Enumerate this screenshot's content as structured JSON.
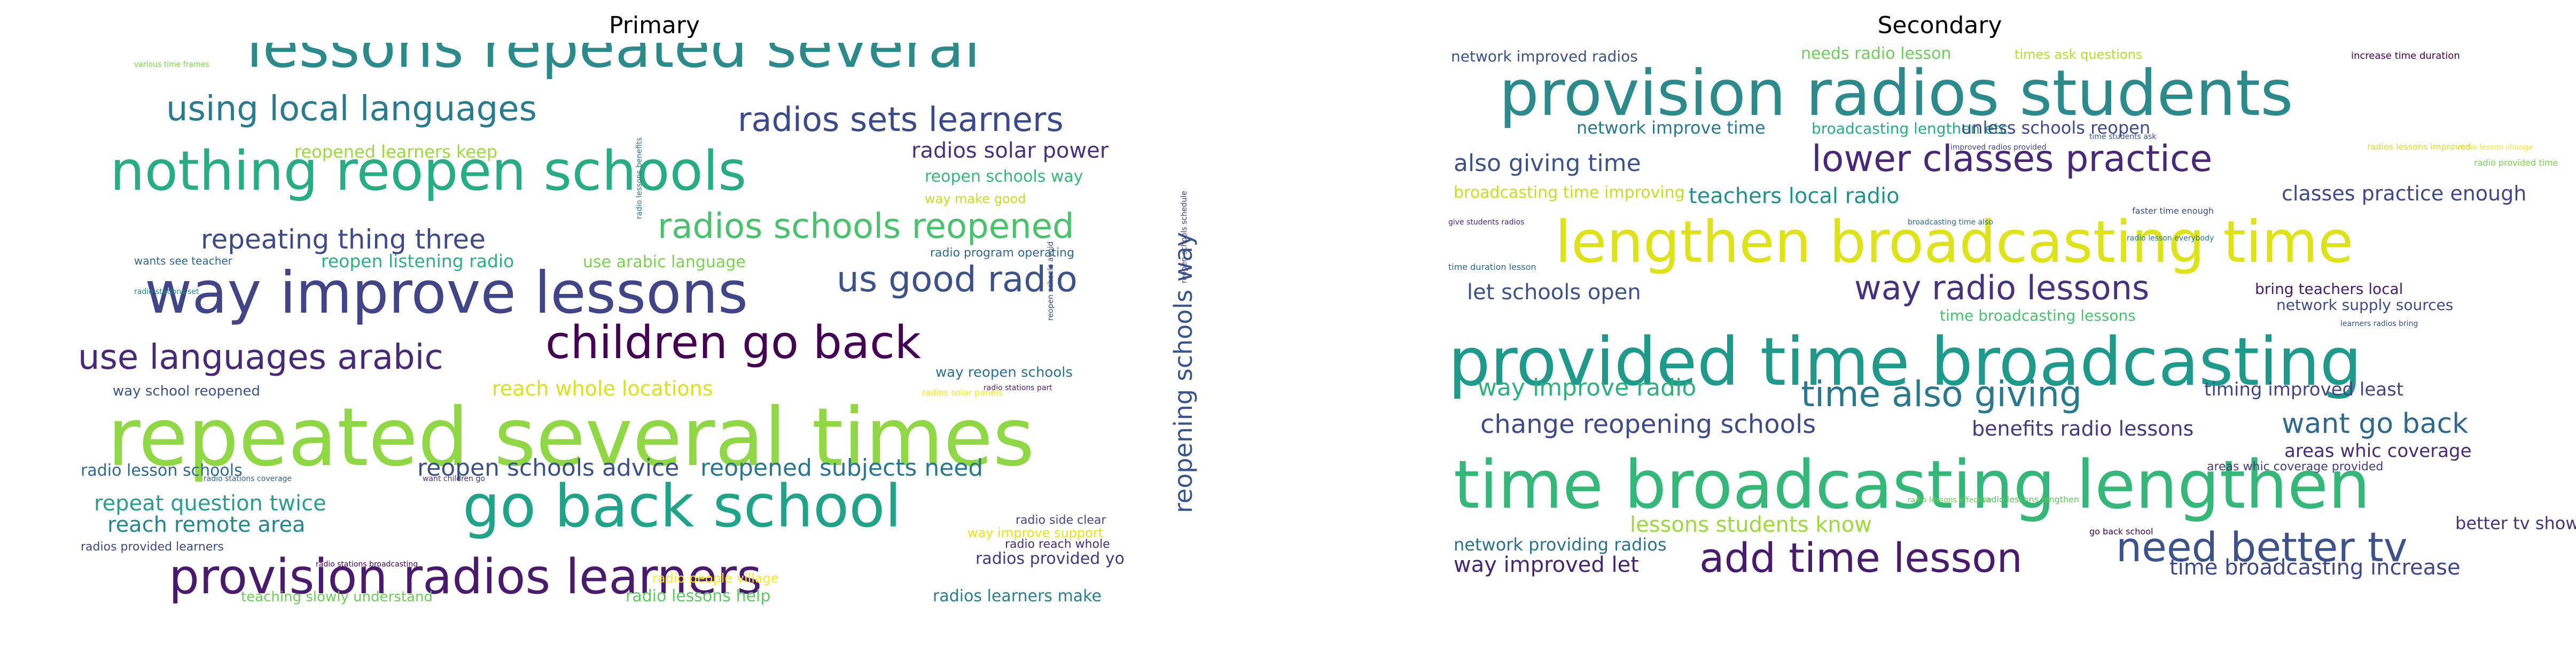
{
  "panels": [
    {
      "title": "Primary",
      "words": [
        {
          "text": "lessons repeated several",
          "color": "#2c8a8a"
        },
        {
          "text": "using local languages",
          "color": "#2a7b8e"
        },
        {
          "text": "radios sets learners",
          "color": "#3b4a8a"
        },
        {
          "text": "nothing reopen schools",
          "color": "#27ad81"
        },
        {
          "text": "radios solar power",
          "color": "#46337f"
        },
        {
          "text": "reopened learners keep",
          "color": "#9bd93c"
        },
        {
          "text": "reopen schools way",
          "color": "#35b779"
        },
        {
          "text": "way make good",
          "color": "#c2df23"
        },
        {
          "text": "radios schools reopened",
          "color": "#4ac16d"
        },
        {
          "text": "repeating thing three",
          "color": "#3e4a89"
        },
        {
          "text": "reopen listening radio",
          "color": "#2db27d"
        },
        {
          "text": "use arabic language",
          "color": "#7ad151"
        },
        {
          "text": "way improve lessons",
          "color": "#414487"
        },
        {
          "text": "us good radio",
          "color": "#3b528b"
        },
        {
          "text": "radio program operating",
          "color": "#31688e"
        },
        {
          "text": "use languages arabic",
          "color": "#482878"
        },
        {
          "text": "children go back",
          "color": "#440154"
        },
        {
          "text": "way school reopened",
          "color": "#3b528b"
        },
        {
          "text": "reach whole locations",
          "color": "#d8e219"
        },
        {
          "text": "way reopen schools",
          "color": "#2c728e"
        },
        {
          "text": "repeated several times",
          "color": "#8fd744"
        },
        {
          "text": "radio lesson schools",
          "color": "#31688e"
        },
        {
          "text": "reopen schools advice",
          "color": "#3b528b"
        },
        {
          "text": "reopened subjects need",
          "color": "#2a788e"
        },
        {
          "text": "repeat question twice",
          "color": "#2a9d8f"
        },
        {
          "text": "reach remote area",
          "color": "#24868e"
        },
        {
          "text": "go back school",
          "color": "#20a386"
        },
        {
          "text": "provision radios learners",
          "color": "#481b6d"
        },
        {
          "text": "radios provided yo",
          "color": "#443983"
        },
        {
          "text": "teaching slowly understand",
          "color": "#6ccd5a"
        },
        {
          "text": "radio lessons help",
          "color": "#5ec962"
        },
        {
          "text": "radios learners make",
          "color": "#287d8e"
        },
        {
          "text": "radio lessons preferred",
          "color": "#3e4c8a"
        },
        {
          "text": "reopening schools way",
          "color": "#3a548c"
        },
        {
          "text": "radio reach whole",
          "color": "#472c7a"
        },
        {
          "text": "radio people village",
          "color": "#fde725"
        },
        {
          "text": "way improve support",
          "color": "#e5e419"
        },
        {
          "text": "radio side clear",
          "color": "#404688"
        },
        {
          "text": "radios provided learners",
          "color": "#3f4889"
        },
        {
          "text": "various time frames",
          "color": "#7fd34e"
        },
        {
          "text": "wants see teacher",
          "color": "#31688e"
        },
        {
          "text": "radio stations set",
          "color": "#21918c"
        },
        {
          "text": "radio stations part",
          "color": "#482475"
        },
        {
          "text": "radios solar panels",
          "color": "#fde725"
        },
        {
          "text": "radio stations broadcasting",
          "color": "#450559"
        },
        {
          "text": "radio stations coverage",
          "color": "#33638d"
        },
        {
          "text": "want children go",
          "color": "#46337f"
        },
        {
          "text": "reopen schools avoid",
          "color": "#3e4a89"
        },
        {
          "text": "radio lessons benefits",
          "color": "#2d708e"
        },
        {
          "text": "reopen schools schedule",
          "color": "#443a83"
        }
      ]
    },
    {
      "title": "Secondary",
      "words": [
        {
          "text": "provision radios students",
          "color": "#2c8a8a"
        },
        {
          "text": "network improved radios",
          "color": "#3b528b"
        },
        {
          "text": "needs radio lesson",
          "color": "#6ccd5a"
        },
        {
          "text": "times ask questions",
          "color": "#b5de2b"
        },
        {
          "text": "increase time duration",
          "color": "#440154"
        },
        {
          "text": "network improve time",
          "color": "#2a788e"
        },
        {
          "text": "broadcasting lengthen etc",
          "color": "#27ad81"
        },
        {
          "text": "unless schools reopen",
          "color": "#3e4a89"
        },
        {
          "text": "also giving time",
          "color": "#3b528b"
        },
        {
          "text": "lower classes practice",
          "color": "#482878"
        },
        {
          "text": "broadcasting time improving",
          "color": "#c2df23"
        },
        {
          "text": "teachers local radio",
          "color": "#21918c"
        },
        {
          "text": "classes practice enough",
          "color": "#3f4889"
        },
        {
          "text": "lengthen broadcasting time",
          "color": "#dde318"
        },
        {
          "text": "way radio lessons",
          "color": "#46337f"
        },
        {
          "text": "let schools open",
          "color": "#3b528b"
        },
        {
          "text": "bring teachers local",
          "color": "#481b6d"
        },
        {
          "text": "network supply sources",
          "color": "#3e4c8a"
        },
        {
          "text": "provided time broadcasting",
          "color": "#1f9a8a"
        },
        {
          "text": "way improve radio",
          "color": "#2db27d"
        },
        {
          "text": "time also giving",
          "color": "#2a788e"
        },
        {
          "text": "timing improved least",
          "color": "#404688"
        },
        {
          "text": "change reopening schools",
          "color": "#3e4a89"
        },
        {
          "text": "want go back",
          "color": "#31688e"
        },
        {
          "text": "benefits radio lessons",
          "color": "#443983"
        },
        {
          "text": "areas whic coverage",
          "color": "#472c7a"
        },
        {
          "text": "time broadcasting lengthen",
          "color": "#35b779"
        },
        {
          "text": "lessons students know",
          "color": "#9bd93c"
        },
        {
          "text": "better tv show",
          "color": "#46337f"
        },
        {
          "text": "network providing radios",
          "color": "#2c728e"
        },
        {
          "text": "need better tv",
          "color": "#3b528b"
        },
        {
          "text": "way improved let",
          "color": "#482475"
        },
        {
          "text": "add time lesson",
          "color": "#481b6d"
        },
        {
          "text": "time broadcasting increase",
          "color": "#3f4889"
        },
        {
          "text": "time broadcasting lessons",
          "color": "#4ac16d"
        },
        {
          "text": "go back school",
          "color": "#440154"
        },
        {
          "text": "radio lessons lengthen",
          "color": "#5ec962"
        },
        {
          "text": "time duration lesson",
          "color": "#33638d"
        },
        {
          "text": "radio provided time",
          "color": "#7ad151"
        },
        {
          "text": "faster time enough",
          "color": "#3e4a89"
        },
        {
          "text": "time students ask",
          "color": "#3b528b"
        },
        {
          "text": "radio lesson change",
          "color": "#fde725"
        },
        {
          "text": "give students radios",
          "color": "#482878"
        },
        {
          "text": "broadcasting time also",
          "color": "#31688e"
        },
        {
          "text": "radio lesson everybody",
          "color": "#2a788e"
        },
        {
          "text": "improved radios provided",
          "color": "#414487"
        },
        {
          "text": "learners radios bring",
          "color": "#3b528b"
        },
        {
          "text": "radios lessons improved",
          "color": "#d8e219"
        },
        {
          "text": "areas whic coverage provided",
          "color": "#443983"
        },
        {
          "text": "radio lessons effective",
          "color": "#6ccd5a"
        }
      ]
    }
  ]
}
